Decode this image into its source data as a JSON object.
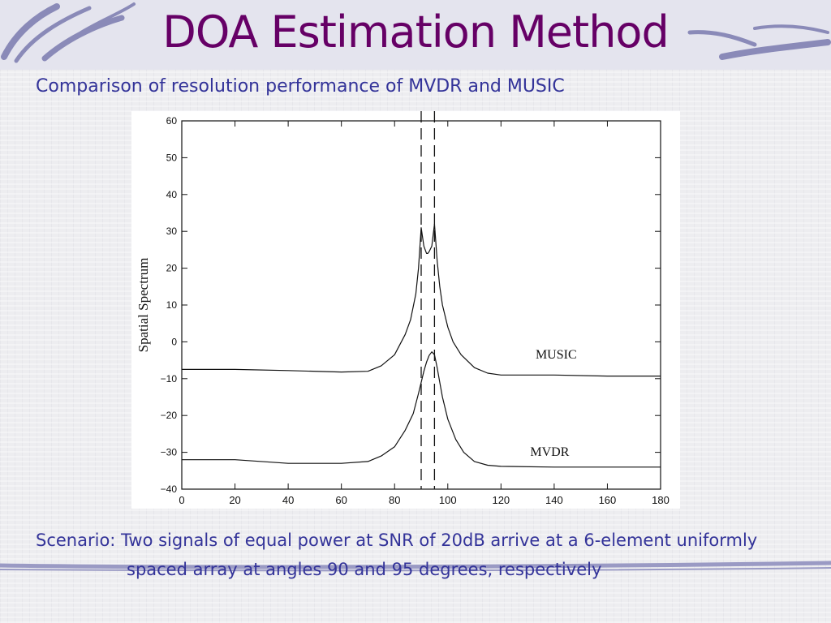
{
  "slide": {
    "title": "DOA Estimation Method",
    "subtitle": "Comparison of resolution performance of MVDR and MUSIC",
    "caption_line1": "Scenario: Two signals of equal power at SNR of 20dB arrive at a 6-element uniformly",
    "caption_line2": "spaced array at angles 90 and 95 degrees, respectively",
    "colors": {
      "title": "#660066",
      "body_text": "#333399",
      "decoration": "#7a7aa8"
    }
  },
  "chart_data": {
    "type": "line",
    "title": "",
    "xlabel": "",
    "ylabel": "Spatial Spectrum",
    "xlim": [
      0,
      180
    ],
    "ylim": [
      -40,
      60
    ],
    "x_ticks": [
      0,
      20,
      40,
      60,
      80,
      100,
      120,
      140,
      160,
      180
    ],
    "y_ticks": [
      60,
      50,
      40,
      30,
      20,
      10,
      0,
      -10,
      -20,
      -30,
      -40
    ],
    "grid": false,
    "vertical_markers": [
      90,
      95
    ],
    "series": [
      {
        "name": "MUSIC",
        "x": [
          0,
          20,
          40,
          60,
          70,
          75,
          80,
          84,
          86,
          88,
          89,
          90,
          91,
          92,
          92.5,
          93,
          94,
          95,
          96,
          97,
          98,
          100,
          102,
          105,
          110,
          115,
          120,
          140,
          160,
          180
        ],
        "y": [
          -7.5,
          -7.5,
          -7.8,
          -8.2,
          -8,
          -6.5,
          -3.5,
          2,
          6,
          13,
          20,
          31,
          26,
          24,
          24,
          24.5,
          26,
          32,
          22,
          15,
          10,
          4,
          0,
          -3.5,
          -7,
          -8.5,
          -9,
          -9,
          -9.3,
          -9.3
        ]
      },
      {
        "name": "MVDR",
        "x": [
          0,
          20,
          40,
          60,
          70,
          75,
          80,
          84,
          87,
          89,
          91,
          92,
          93,
          94,
          95,
          96,
          97,
          98,
          100,
          103,
          106,
          110,
          115,
          120,
          140,
          160,
          180
        ],
        "y": [
          -32,
          -32,
          -33,
          -33,
          -32.5,
          -31,
          -28.5,
          -24,
          -19.5,
          -14,
          -8,
          -5.5,
          -3.7,
          -2.7,
          -3.5,
          -7,
          -11,
          -15,
          -21,
          -26.5,
          -30,
          -32.5,
          -33.5,
          -33.8,
          -34,
          -34,
          -34
        ]
      }
    ],
    "annotations": [
      "MUSIC",
      "MVDR"
    ]
  }
}
